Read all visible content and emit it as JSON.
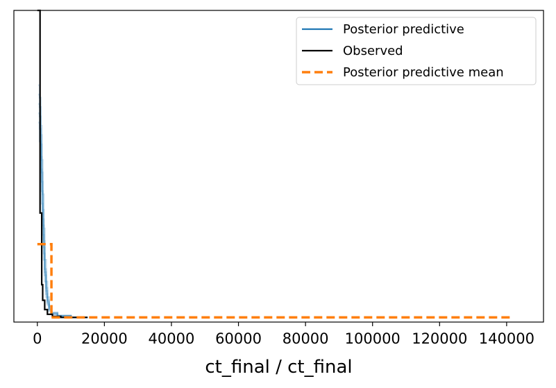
{
  "chart_data": {
    "type": "line",
    "title": "",
    "xlabel": "ct_final / ct_final",
    "ylabel": "",
    "xlim": [
      -7000,
      151000
    ],
    "ylim": [
      0,
      1
    ],
    "xticks": [
      0,
      20000,
      40000,
      60000,
      80000,
      100000,
      120000,
      140000
    ],
    "xtick_labels": [
      "0",
      "20000",
      "40000",
      "60000",
      "80000",
      "100000",
      "120000",
      "140000"
    ],
    "yticks_shown": false,
    "grid": false,
    "legend": {
      "position": "top-right",
      "entries": [
        {
          "name": "Posterior predictive",
          "color": "#1f77b4",
          "style": "solid"
        },
        {
          "name": "Observed",
          "color": "#000000",
          "style": "solid"
        },
        {
          "name": "Posterior predictive mean",
          "color": "#ff7f0e",
          "style": "dashed"
        }
      ]
    },
    "series": [
      {
        "name": "Posterior predictive",
        "color": "#1f77b4",
        "style": "solid",
        "draws": [
          {
            "x": [
              300,
              700,
              1000,
              1300,
              1600,
              1900,
              2200,
              2600,
              3000,
              3500,
              4200,
              6000,
              10000,
              15000
            ],
            "y": [
              0.76,
              0.72,
              0.63,
              0.52,
              0.41,
              0.3,
              0.2,
              0.13,
              0.08,
              0.05,
              0.03,
              0.02,
              0.015,
              0.015
            ]
          },
          {
            "x": [
              300,
              700,
              1000,
              1300,
              1600,
              1900,
              2200,
              2600,
              3000,
              3500,
              4200,
              6000,
              10000,
              15000
            ],
            "y": [
              0.73,
              0.69,
              0.6,
              0.48,
              0.36,
              0.26,
              0.17,
              0.11,
              0.07,
              0.045,
              0.03,
              0.02,
              0.015,
              0.015
            ]
          },
          {
            "x": [
              300,
              700,
              1000,
              1300,
              1600,
              1900,
              2200,
              2600,
              3000,
              3500,
              4200,
              6000,
              10000,
              15000
            ],
            "y": [
              0.7,
              0.66,
              0.57,
              0.45,
              0.33,
              0.24,
              0.16,
              0.1,
              0.065,
              0.04,
              0.028,
              0.02,
              0.015,
              0.015
            ]
          },
          {
            "x": [
              300,
              700,
              1000,
              1300,
              1600,
              1900,
              2200,
              2600,
              3000,
              3500,
              4200,
              6000,
              10000,
              15000
            ],
            "y": [
              0.67,
              0.62,
              0.53,
              0.42,
              0.31,
              0.22,
              0.15,
              0.09,
              0.06,
              0.04,
              0.025,
              0.02,
              0.015,
              0.015
            ]
          },
          {
            "x": [
              300,
              700,
              1000,
              1300,
              1600,
              1900,
              2200,
              2600,
              3000,
              3500,
              4200,
              6000,
              10000,
              15000
            ],
            "y": [
              0.64,
              0.58,
              0.49,
              0.38,
              0.28,
              0.2,
              0.13,
              0.08,
              0.055,
              0.035,
              0.025,
              0.02,
              0.015,
              0.015
            ]
          }
        ]
      },
      {
        "name": "Observed",
        "color": "#000000",
        "style": "solid",
        "x": [
          0,
          800,
          800,
          1300,
          1300,
          1600,
          1600,
          2200,
          2200,
          3000,
          3000,
          4500,
          4500,
          7000,
          7000,
          15000
        ],
        "y": [
          1.0,
          1.0,
          0.35,
          0.35,
          0.12,
          0.12,
          0.07,
          0.07,
          0.04,
          0.04,
          0.025,
          0.025,
          0.018,
          0.018,
          0.015,
          0.015
        ]
      },
      {
        "name": "Posterior predictive mean",
        "color": "#ff7f0e",
        "style": "dashed",
        "x": [
          0,
          4200,
          4200,
          141000
        ],
        "y": [
          0.25,
          0.25,
          0.015,
          0.015
        ]
      }
    ]
  }
}
